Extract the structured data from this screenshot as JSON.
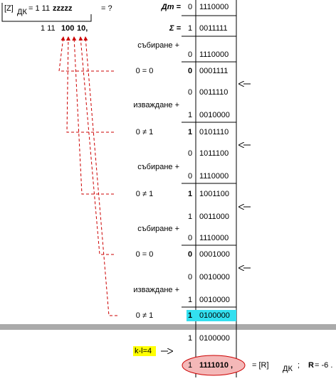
{
  "header": {
    "bracket": "[Z]",
    "sub": "ДК",
    "eq": "= 1 11",
    "zs": "zzzzz",
    "question": "= ?"
  },
  "quotient": {
    "prefix": "1 11",
    "red1": "100",
    "red2": "10,"
  },
  "dt": {
    "label": "Дт =",
    "sign": "0",
    "bits": "1110000"
  },
  "sigma": {
    "label": "Σ =",
    "sign": "1",
    "bits": "0011111"
  },
  "steps": [
    {
      "op": "събиране +"
    },
    {
      "sign": "0",
      "bits": "1110000"
    },
    {
      "cmp": "0 = 0",
      "sign": "0",
      "bits": "0001111"
    },
    {
      "sign": "0",
      "bits": "0011110"
    },
    {
      "op": "изваждане +"
    },
    {
      "sign": "1",
      "bits": "0010000"
    },
    {
      "cmp": "0 ≠ 1",
      "sign": "1",
      "bits": "0101110"
    },
    {
      "sign": "0",
      "bits": "1011100"
    },
    {
      "op": "събиране +"
    },
    {
      "sign": "0",
      "bits": "1110000"
    },
    {
      "cmp": "0 ≠ 1",
      "sign": "1",
      "bits": "1001100"
    },
    {
      "sign": "1",
      "bits": "0011000"
    },
    {
      "op": "събиране +"
    },
    {
      "sign": "0",
      "bits": "1110000"
    },
    {
      "cmp": "0 = 0",
      "sign": "0",
      "bits": "0001000"
    },
    {
      "sign": "0",
      "bits": "0010000"
    },
    {
      "op": "изваждане +"
    },
    {
      "sign": "1",
      "bits": "0010000"
    },
    {
      "cmp": "0 ≠ 1",
      "sign": "1",
      "bits": "0100000",
      "highlight": true
    },
    {
      "sign": "1",
      "bits": "0100000"
    }
  ],
  "footer": {
    "kl": "k-l=4",
    "sign": "1",
    "bits": "1111010 ,",
    "eq": "= [R]",
    "sub": "ДК",
    "semi": ";",
    "r_label": "R",
    "r_value": "= -6 ."
  }
}
